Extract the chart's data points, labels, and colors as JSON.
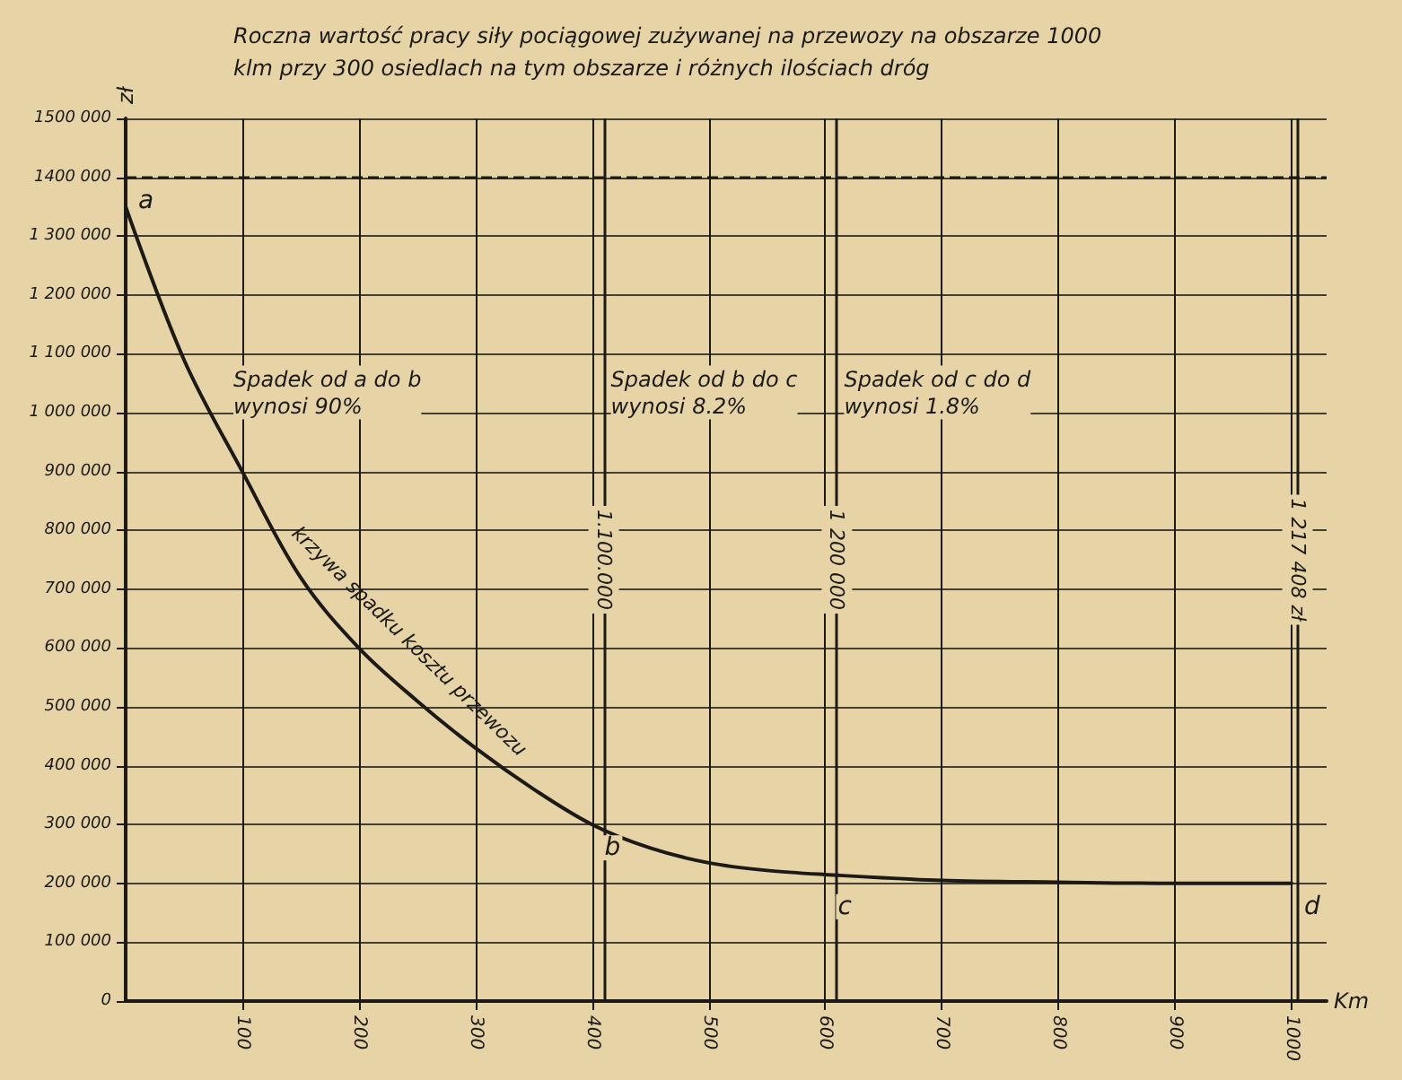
{
  "chart_data": {
    "type": "line",
    "title": "Roczna wartość pracy siły pociągowej zużywanej na przewozy na obszarze 1000 klm przy 300 osiedlach na tym obszarze i różnych ilościach dróg",
    "xlabel": "Km",
    "ylabel": "zł",
    "x": [
      0,
      50,
      100,
      150,
      200,
      250,
      300,
      350,
      400,
      450,
      500,
      550,
      600,
      700,
      800,
      900,
      1000
    ],
    "series": [
      {
        "name": "krzywa spadku kosztu przewozu",
        "color": "#1c1a16",
        "values": [
          1350000,
          1090000,
          900000,
          720000,
          600000,
          510000,
          430000,
          360000,
          300000,
          260000,
          235000,
          222000,
          215000,
          205000,
          202000,
          200000,
          200000
        ]
      }
    ],
    "xlim": [
      0,
      1030
    ],
    "xticks": [
      100,
      200,
      300,
      400,
      500,
      600,
      700,
      800,
      900,
      1000
    ],
    "ylim": [
      0,
      1500000
    ],
    "yticks": [
      {
        "value": 0,
        "label": "0"
      },
      {
        "value": 100000,
        "label": "100 000"
      },
      {
        "value": 200000,
        "label": "200 000"
      },
      {
        "value": 300000,
        "label": "300 000"
      },
      {
        "value": 400000,
        "label": "400 000"
      },
      {
        "value": 500000,
        "label": "500 000"
      },
      {
        "value": 600000,
        "label": "600 000"
      },
      {
        "value": 700000,
        "label": "700 000"
      },
      {
        "value": 800000,
        "label": "800 000"
      },
      {
        "value": 900000,
        "label": "900 000"
      },
      {
        "value": 1000000,
        "label": "1 000 000"
      },
      {
        "value": 1100000,
        "label": "1 100 000"
      },
      {
        "value": 1200000,
        "label": "1 200 000"
      },
      {
        "value": 1300000,
        "label": "1 300 000"
      },
      {
        "value": 1400000,
        "label": "1400 000"
      },
      {
        "value": 1500000,
        "label": "1500 000"
      }
    ],
    "ref_lines": [
      {
        "axis": "y",
        "value": 1400000,
        "label": null,
        "line_style": "dashed"
      },
      {
        "axis": "x",
        "value": 410,
        "label": null
      },
      {
        "axis": "x",
        "value": 610,
        "label": null
      },
      {
        "axis": "x",
        "value": 1005,
        "label": null
      }
    ],
    "annotations": [
      {
        "text": "a",
        "x": 0,
        "y": 1400000
      },
      {
        "text": "b",
        "x": 400,
        "y": 300000
      },
      {
        "text": "c",
        "x": 600,
        "y": 200000
      },
      {
        "text": "d",
        "x": 1000,
        "y": 200000
      },
      {
        "text": "1.100.000",
        "x": 410,
        "y": 750000
      },
      {
        "text": "1 200 000",
        "x": 610,
        "y": 750000
      },
      {
        "text": "1 217 408 zł",
        "x": 1005,
        "y": 750000
      },
      "Spadek od a do b\nwynosi 90%",
      "Spadek od b do c\nwynosi 8.2%",
      "Spadek od c do d\nwynosi 1.8%"
    ],
    "grid": true,
    "marker": "none",
    "line_style": "solid",
    "legend": false
  }
}
